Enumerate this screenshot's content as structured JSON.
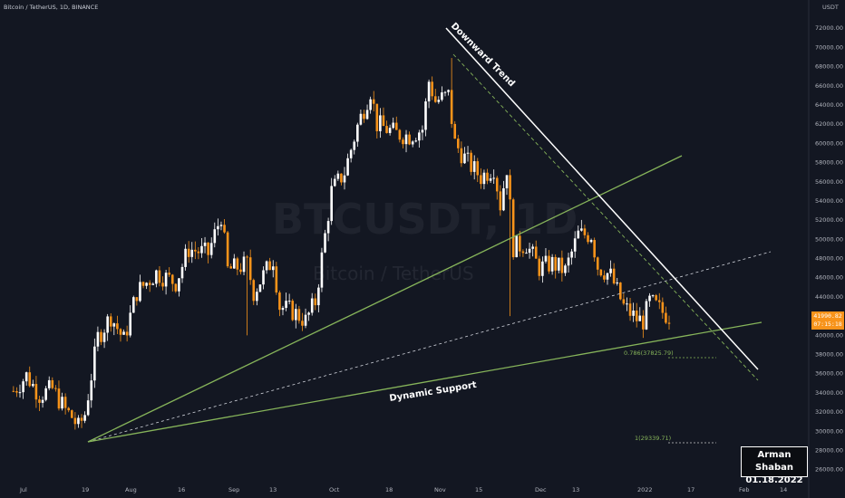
{
  "symbol_label": "Bitcoin / TetherUS, 1D, BINANCE",
  "currency": "USDT",
  "watermark": {
    "ticker": "BTCUSDT, 1D",
    "name": "Bitcoin / TetherUS"
  },
  "colors": {
    "background": "#131722",
    "candle_up": "#ffffff",
    "candle_down": "#f7931a",
    "support_line": "#86b45a",
    "trend_line": "#ffffff",
    "price_tag": "#f7931a"
  },
  "last_price": {
    "value": "41990.82",
    "countdown": "07:15:18"
  },
  "signature": {
    "author": "Arman Shaban",
    "date": "01.18.2022"
  },
  "annotations": {
    "downward_trend": "Downward Trend",
    "dynamic_support": "Dynamic Support"
  },
  "fib_levels": [
    {
      "label": "0.786(37825.79)"
    },
    {
      "label": "1(29339.71)"
    }
  ],
  "chart_data": {
    "type": "candlestick",
    "y_axis_ticks": [
      "72000.00",
      "70000.00",
      "68000.00",
      "66000.00",
      "64000.00",
      "62000.00",
      "60000.00",
      "58000.00",
      "56000.00",
      "54000.00",
      "52000.00",
      "50000.00",
      "48000.00",
      "46000.00",
      "44000.00",
      "42000.00",
      "40000.00",
      "38000.00",
      "36000.00",
      "34000.00",
      "32000.00",
      "30000.00",
      "28000.00",
      "26000.00"
    ],
    "x_axis_ticks": [
      "Jul",
      "19",
      "Aug",
      "16",
      "Sep",
      "13",
      "Oct",
      "18",
      "Nov",
      "15",
      "Dec",
      "13",
      "2022",
      "17",
      "Feb",
      "14"
    ],
    "ylim": [
      25500,
      74000
    ],
    "keyframes": [
      {
        "d": -2,
        "p": 34200
      },
      {
        "d": 2,
        "p": 35800
      },
      {
        "d": 6,
        "p": 33800
      },
      {
        "d": 10,
        "p": 34400
      },
      {
        "d": 14,
        "p": 32200
      },
      {
        "d": 16,
        "p": 31500
      },
      {
        "d": 18,
        "p": 30400
      },
      {
        "d": 20,
        "p": 31800
      },
      {
        "d": 24,
        "p": 39800
      },
      {
        "d": 28,
        "p": 42000
      },
      {
        "d": 32,
        "p": 39500
      },
      {
        "d": 36,
        "p": 44500
      },
      {
        "d": 42,
        "p": 46500
      },
      {
        "d": 48,
        "p": 45500
      },
      {
        "d": 52,
        "p": 49000
      },
      {
        "d": 58,
        "p": 48500
      },
      {
        "d": 62,
        "p": 52500
      },
      {
        "d": 64,
        "p": 46800
      },
      {
        "d": 70,
        "p": 47400
      },
      {
        "d": 72,
        "p": 44500
      },
      {
        "d": 78,
        "p": 48000
      },
      {
        "d": 80,
        "p": 43000
      },
      {
        "d": 84,
        "p": 42500
      },
      {
        "d": 88,
        "p": 41500
      },
      {
        "d": 91,
        "p": 43500
      },
      {
        "d": 96,
        "p": 55000
      },
      {
        "d": 100,
        "p": 57000
      },
      {
        "d": 104,
        "p": 61800
      },
      {
        "d": 108,
        "p": 65500
      },
      {
        "d": 110,
        "p": 62000
      },
      {
        "d": 116,
        "p": 61000
      },
      {
        "d": 120,
        "p": 60800
      },
      {
        "d": 124,
        "p": 61500
      },
      {
        "d": 126,
        "p": 66500
      },
      {
        "d": 128,
        "p": 64400
      },
      {
        "d": 132,
        "p": 65000
      },
      {
        "d": 134,
        "p": 60000
      },
      {
        "d": 138,
        "p": 58000
      },
      {
        "d": 142,
        "p": 56500
      },
      {
        "d": 146,
        "p": 57500
      },
      {
        "d": 148,
        "p": 53600
      },
      {
        "d": 150,
        "p": 57500
      },
      {
        "d": 152,
        "p": 49200
      },
      {
        "d": 156,
        "p": 49500
      },
      {
        "d": 160,
        "p": 47000
      },
      {
        "d": 164,
        "p": 47500
      },
      {
        "d": 168,
        "p": 46700
      },
      {
        "d": 172,
        "p": 50500
      },
      {
        "d": 176,
        "p": 50500
      },
      {
        "d": 178,
        "p": 47200
      },
      {
        "d": 182,
        "p": 46200
      },
      {
        "d": 186,
        "p": 43000
      },
      {
        "d": 190,
        "p": 41700
      },
      {
        "d": 192,
        "p": 41500
      },
      {
        "d": 194,
        "p": 43500
      },
      {
        "d": 196,
        "p": 43000
      },
      {
        "d": 198,
        "p": 42400
      },
      {
        "d": 200,
        "p": 42000
      }
    ]
  }
}
